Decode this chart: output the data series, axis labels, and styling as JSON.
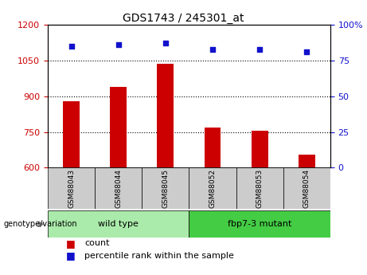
{
  "title": "GDS1743 / 245301_at",
  "samples": [
    "GSM88043",
    "GSM88044",
    "GSM88045",
    "GSM88052",
    "GSM88053",
    "GSM88054"
  ],
  "counts": [
    880,
    940,
    1035,
    770,
    757,
    655
  ],
  "percentile_ranks": [
    85,
    86,
    87,
    83,
    83,
    81
  ],
  "ylim_left": [
    600,
    1200
  ],
  "ylim_right": [
    0,
    100
  ],
  "yticks_left": [
    600,
    750,
    900,
    1050,
    1200
  ],
  "yticks_right": [
    0,
    25,
    50,
    75,
    100
  ],
  "bar_color": "#cc0000",
  "dot_color": "#1111cc",
  "groups": [
    {
      "label": "wild type",
      "indices": [
        0,
        1,
        2
      ],
      "color": "#aaeaaa"
    },
    {
      "label": "fbp7-3 mutant",
      "indices": [
        3,
        4,
        5
      ],
      "color": "#44cc44"
    }
  ],
  "genotype_label": "genotype/variation",
  "legend_count_color": "#cc0000",
  "legend_percentile_color": "#1111cc",
  "tick_label_color_left": "#cc0000",
  "tick_label_color_right": "#1111cc",
  "dotted_lines": [
    750,
    900,
    1050
  ],
  "sample_box_color": "#cccccc",
  "background_color": "#ffffff"
}
